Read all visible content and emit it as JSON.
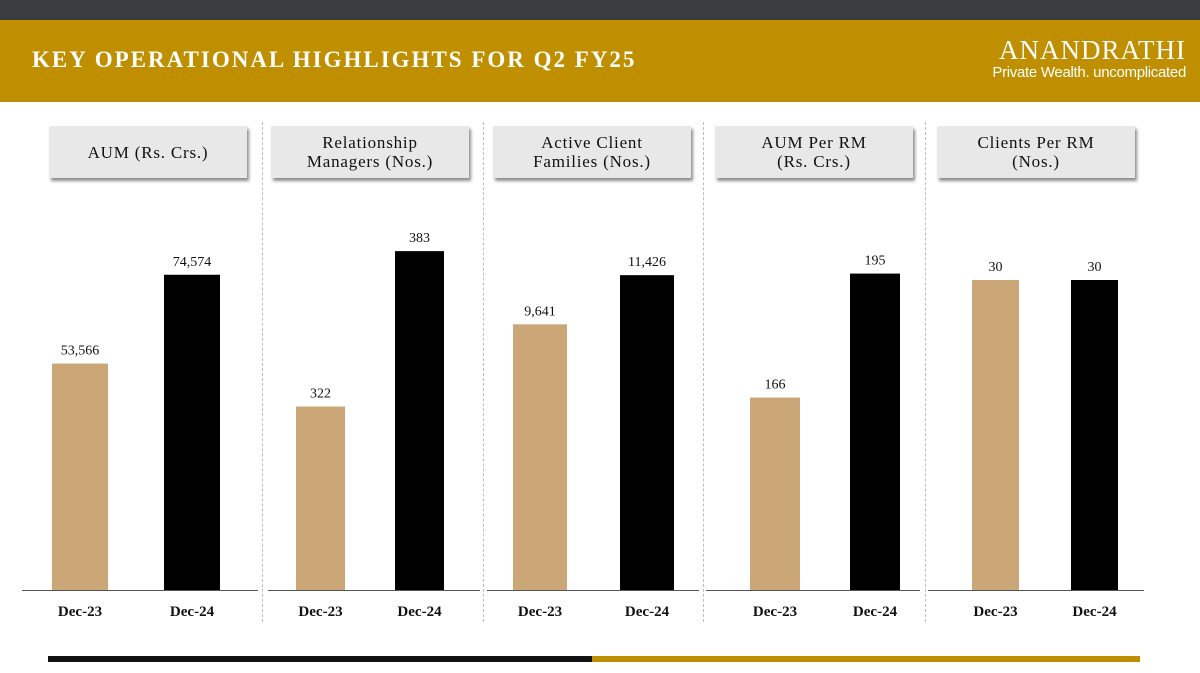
{
  "header": {
    "title": "KEY OPERATIONAL HIGHLIGHTS FOR Q2 FY25",
    "logo_brand": "ANANDRATHI",
    "logo_tagline": "Private Wealth. uncomplicated"
  },
  "colors": {
    "header_gold": "#bf8f00",
    "dec23_bar": "#cba676",
    "dec24_bar": "#000000"
  },
  "chart_data": [
    {
      "type": "bar",
      "title": "AUM (Rs. Crs.)",
      "categories": [
        "Dec-23",
        "Dec-24"
      ],
      "values": [
        53566,
        74574
      ],
      "value_labels": [
        "53,566",
        "74,574"
      ],
      "ylim": [
        0,
        88000
      ]
    },
    {
      "type": "bar",
      "title": "Relationship\nManagers (Nos.)",
      "categories": [
        "Dec-23",
        "Dec-24"
      ],
      "values": [
        322,
        383
      ],
      "value_labels": [
        "322",
        "383"
      ],
      "ylim": [
        250,
        396
      ]
    },
    {
      "type": "bar",
      "title": "Active Client\nFamilies (Nos.)",
      "categories": [
        "Dec-23",
        "Dec-24"
      ],
      "values": [
        9641,
        11426
      ],
      "value_labels": [
        "9,641",
        "11,426"
      ],
      "ylim": [
        0,
        13500
      ]
    },
    {
      "type": "bar",
      "title": "AUM Per RM\n(Rs. Crs.)",
      "categories": [
        "Dec-23",
        "Dec-24"
      ],
      "values": [
        166,
        195
      ],
      "value_labels": [
        "166",
        "195"
      ],
      "ylim": [
        121,
        208
      ]
    },
    {
      "type": "bar",
      "title": "Clients Per RM\n(Nos.)",
      "categories": [
        "Dec-23",
        "Dec-24"
      ],
      "values": [
        30,
        30
      ],
      "value_labels": [
        "30",
        "30"
      ],
      "ylim": [
        0,
        36
      ]
    }
  ]
}
